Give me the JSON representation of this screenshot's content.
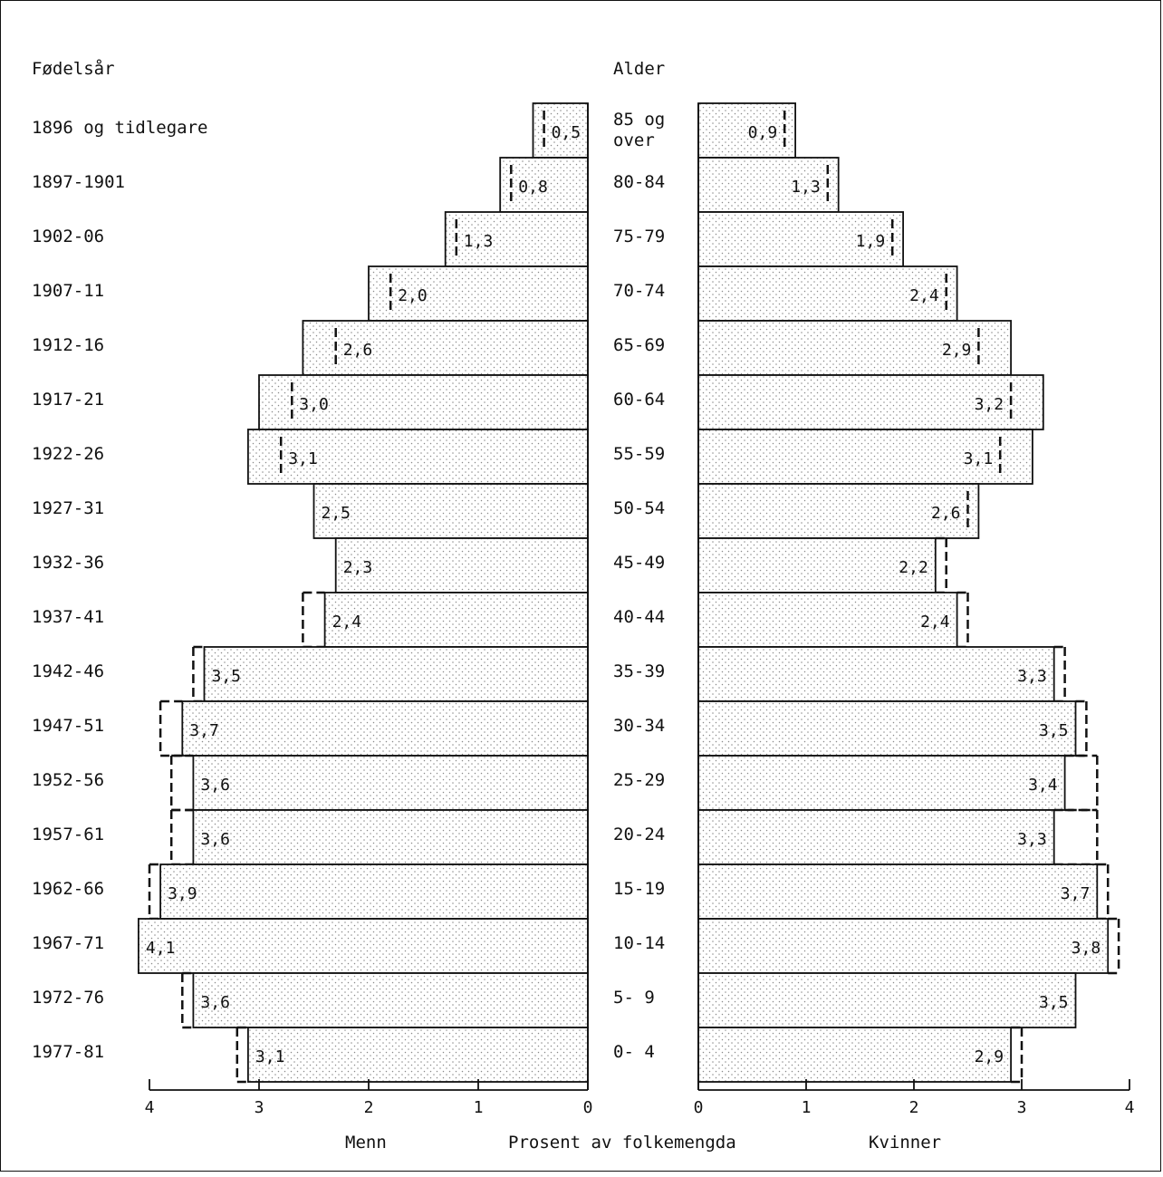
{
  "chart_data": {
    "type": "bar",
    "subtype": "population-pyramid",
    "left_header": "Fødelsår",
    "center_header": "Alder",
    "xlabel_left": "Menn",
    "xlabel_center": "Prosent av folkemengda",
    "xlabel_right": "Kvinner",
    "xlim": [
      0,
      4
    ],
    "x_ticks": [
      "0",
      "1",
      "2",
      "3",
      "4"
    ],
    "birth_years": [
      "1896 og tidlegare",
      "1897-1901",
      "1902-06",
      "1907-11",
      "1912-16",
      "1917-21",
      "1922-26",
      "1927-31",
      "1932-36",
      "1937-41",
      "1942-46",
      "1947-51",
      "1952-56",
      "1957-61",
      "1962-66",
      "1967-71",
      "1972-76",
      "1977-81"
    ],
    "age_groups": [
      [
        "85 og",
        "over"
      ],
      [
        "80-84"
      ],
      [
        "75-79"
      ],
      [
        "70-74"
      ],
      [
        "65-69"
      ],
      [
        "60-64"
      ],
      [
        "55-59"
      ],
      [
        "50-54"
      ],
      [
        "45-49"
      ],
      [
        "40-44"
      ],
      [
        "35-39"
      ],
      [
        "30-34"
      ],
      [
        "25-29"
      ],
      [
        "20-24"
      ],
      [
        "15-19"
      ],
      [
        "10-14"
      ],
      [
        "5- 9"
      ],
      [
        "0- 4"
      ]
    ],
    "series": [
      {
        "name": "Menn",
        "values": [
          0.5,
          0.8,
          1.3,
          2.0,
          2.6,
          3.0,
          3.1,
          2.5,
          2.3,
          2.4,
          3.5,
          3.7,
          3.6,
          3.6,
          3.9,
          4.1,
          3.6,
          3.1
        ],
        "labels": [
          "0,5",
          "0,8",
          "1,3",
          "2,0",
          "2,6",
          "3,0",
          "3,1",
          "2,5",
          "2,3",
          "2,4",
          "3,5",
          "3,7",
          "3,6",
          "3,6",
          "3,9",
          "4,1",
          "3,6",
          "3,1"
        ],
        "comparison_values": [
          0.4,
          0.7,
          1.2,
          1.8,
          2.3,
          2.7,
          2.8,
          2.5,
          2.3,
          2.6,
          3.6,
          3.9,
          3.8,
          3.8,
          4.0,
          4.1,
          3.7,
          3.2
        ]
      },
      {
        "name": "Kvinner",
        "values": [
          0.9,
          1.3,
          1.9,
          2.4,
          2.9,
          3.2,
          3.1,
          2.6,
          2.2,
          2.4,
          3.3,
          3.5,
          3.4,
          3.3,
          3.7,
          3.8,
          3.5,
          2.9
        ],
        "labels": [
          "0,9",
          "1,3",
          "1,9",
          "2,4",
          "2,9",
          "3,2",
          "3,1",
          "2,6",
          "2,2",
          "2,4",
          "3,3",
          "3,5",
          "3,4",
          "3,3",
          "3,7",
          "3,8",
          "3,5",
          "2,9"
        ],
        "comparison_values": [
          0.8,
          1.2,
          1.8,
          2.3,
          2.6,
          2.9,
          2.8,
          2.5,
          2.3,
          2.5,
          3.4,
          3.6,
          3.7,
          3.7,
          3.8,
          3.9,
          3.5,
          3.0
        ]
      }
    ]
  }
}
